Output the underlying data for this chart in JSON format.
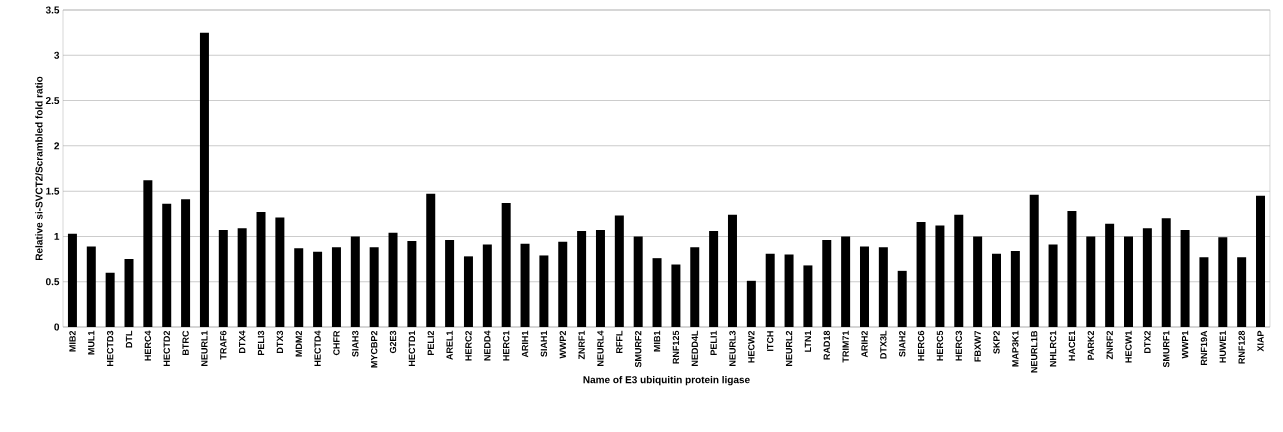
{
  "chart_data": {
    "type": "bar",
    "xlabel": "Name of E3 ubiquitin protein ligase",
    "ylabel": "Relative si-SVCT2/Scrambled fold ratio",
    "categories": [
      "MIB2",
      "MUL1",
      "HECTD3",
      "DTL",
      "HERC4",
      "HECTD2",
      "BTRC",
      "NEURL1",
      "TRAF6",
      "DTX4",
      "PELI3",
      "DTX3",
      "MDM2",
      "HECTD4",
      "CHFR",
      "SIAH3",
      "MYCBP2",
      "G2E3",
      "HECTD1",
      "PELI2",
      "AREL1",
      "HERC2",
      "NEDD4",
      "HERC1",
      "ARIH1",
      "SIAH1",
      "WWP2",
      "ZNRF1",
      "NEURL4",
      "RFFL",
      "SMURF2",
      "MIB1",
      "RNF125",
      "NEDD4L",
      "PELI1",
      "NEURL3",
      "HECW2",
      "ITCH",
      "NEURL2",
      "LTN1",
      "RAD18",
      "TRIM71",
      "ARIH2",
      "DTX3L",
      "SIAH2",
      "HERC6",
      "HERC5",
      "HERC3",
      "FBXW7",
      "SKP2",
      "MAP3K1",
      "NEURL1B",
      "NHLRC1",
      "HACE1",
      "PARK2",
      "ZNRF2",
      "HECW1",
      "DTX2",
      "SMURF1",
      "WWP1",
      "RNF19A",
      "HUWE1",
      "RNF128",
      "XIAP"
    ],
    "values": [
      1.03,
      0.89,
      0.6,
      0.75,
      1.62,
      1.36,
      1.41,
      3.25,
      1.07,
      1.09,
      1.27,
      1.21,
      0.87,
      0.83,
      0.88,
      1.0,
      0.88,
      1.04,
      0.95,
      1.47,
      0.96,
      0.78,
      0.91,
      1.37,
      0.92,
      0.79,
      0.94,
      1.06,
      1.07,
      1.23,
      1.0,
      0.76,
      0.69,
      0.88,
      1.06,
      1.24,
      0.51,
      0.81,
      0.8,
      0.68,
      0.96,
      1.0,
      0.89,
      0.88,
      0.62,
      1.16,
      1.12,
      1.24,
      1.0,
      0.81,
      0.84,
      1.46,
      0.91,
      1.28,
      1.0,
      1.14,
      1.0,
      1.09,
      1.2,
      1.07,
      0.77,
      0.99,
      0.77,
      1.45
    ],
    "color": "#000000",
    "ylim": [
      0,
      3.5
    ],
    "yticks": [
      0,
      0.5,
      1,
      1.5,
      2,
      2.5,
      3,
      3.5
    ],
    "grid": "y"
  }
}
